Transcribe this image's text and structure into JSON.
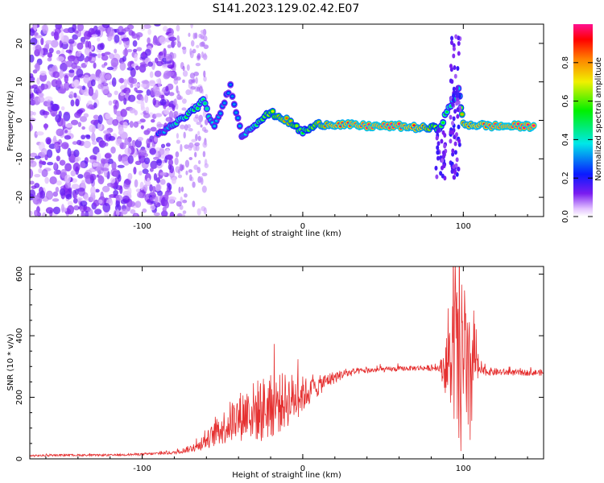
{
  "title": "S141.2023.129.02.42.E07",
  "colors": {
    "snr_line": "#e53030",
    "frame": "#000000"
  },
  "chart_data": [
    {
      "type": "heatmap",
      "xlabel": "Height of straight line (km)",
      "ylabel": "Frequency (Hz)",
      "xlim": [
        -170,
        150
      ],
      "ylim": [
        -25,
        25
      ],
      "xticks": [
        "-100",
        "0",
        "100"
      ],
      "yticks": [
        "-20",
        "-10",
        "0",
        "10",
        "20"
      ],
      "colorbar": {
        "label": "Normalized spectral amplitude",
        "range": [
          0,
          1
        ],
        "ticks": [
          "0.0",
          "0.2",
          "0.4",
          "0.6",
          "0.8"
        ]
      },
      "ridge": [
        {
          "x": -90,
          "y": -4,
          "a": 0.3
        },
        {
          "x": -80,
          "y": -1,
          "a": 0.45
        },
        {
          "x": -70,
          "y": 2,
          "a": 0.55
        },
        {
          "x": -62,
          "y": 5,
          "a": 0.5
        },
        {
          "x": -55,
          "y": -2,
          "a": 0.35
        },
        {
          "x": -45,
          "y": 9,
          "a": 0.3
        },
        {
          "x": -38,
          "y": -4,
          "a": 0.35
        },
        {
          "x": -30,
          "y": -1,
          "a": 0.5
        },
        {
          "x": -20,
          "y": 2,
          "a": 0.7
        },
        {
          "x": -10,
          "y": 0,
          "a": 0.85
        },
        {
          "x": 0,
          "y": -3,
          "a": 0.55
        },
        {
          "x": 10,
          "y": -1,
          "a": 0.8
        },
        {
          "x": 20,
          "y": -1,
          "a": 0.95
        },
        {
          "x": 40,
          "y": -1.5,
          "a": 1.0
        },
        {
          "x": 60,
          "y": -1.5,
          "a": 1.0
        },
        {
          "x": 75,
          "y": -2,
          "a": 0.9
        },
        {
          "x": 85,
          "y": -2,
          "a": 0.6
        },
        {
          "x": 97,
          "y": 8,
          "a": 0.4
        },
        {
          "x": 100,
          "y": -1,
          "a": 0.9
        },
        {
          "x": 120,
          "y": -1.5,
          "a": 1.0
        },
        {
          "x": 145,
          "y": -1.5,
          "a": 1.0
        }
      ]
    },
    {
      "type": "line",
      "xlabel": "Height of straight line (km)",
      "ylabel": "SNR (10 * v/v)",
      "xlim": [
        -170,
        150
      ],
      "ylim": [
        0,
        625
      ],
      "xticks": [
        "-100",
        "0",
        "100"
      ],
      "yticks": [
        "0",
        "200",
        "400",
        "600"
      ],
      "series": [
        {
          "x": [
            -170,
            -150,
            -120,
            -100,
            -80,
            -65,
            -55,
            -45,
            -35,
            -25,
            -15,
            -5,
            5,
            15,
            25,
            35,
            50,
            70,
            85,
            92,
            95,
            98,
            100,
            103,
            106,
            110,
            130,
            150
          ],
          "y": [
            10,
            12,
            12,
            15,
            20,
            40,
            80,
            120,
            150,
            160,
            180,
            200,
            220,
            255,
            275,
            285,
            290,
            295,
            295,
            300,
            380,
            200,
            420,
            150,
            350,
            285,
            280,
            280
          ],
          "noise": [
            3,
            3,
            3,
            4,
            5,
            15,
            40,
            70,
            90,
            110,
            100,
            80,
            40,
            25,
            15,
            10,
            8,
            8,
            10,
            150,
            300,
            250,
            280,
            280,
            200,
            15,
            10,
            10
          ]
        }
      ]
    }
  ]
}
